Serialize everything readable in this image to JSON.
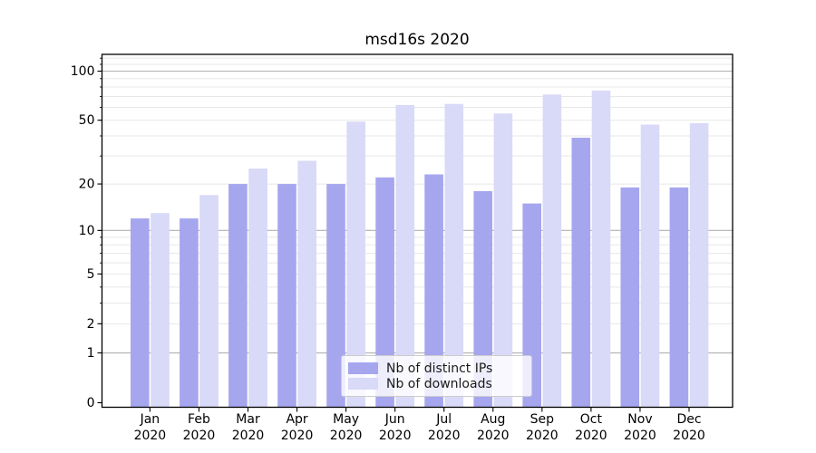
{
  "chart_data": {
    "type": "bar",
    "title": "msd16s 2020",
    "categories": [
      "Jan",
      "Feb",
      "Mar",
      "Apr",
      "May",
      "Jun",
      "Jul",
      "Aug",
      "Sep",
      "Oct",
      "Nov",
      "Dec"
    ],
    "category_year": "2020",
    "series": [
      {
        "name": "Nb of distinct IPs",
        "color": "#a6a6ef",
        "values": [
          12,
          12,
          20,
          20,
          20,
          22,
          23,
          18,
          15,
          39,
          19,
          19
        ]
      },
      {
        "name": "Nb of downloads",
        "color": "#d9d9f8",
        "values": [
          13,
          17,
          25,
          28,
          49,
          62,
          63,
          55,
          72,
          76,
          47,
          48
        ]
      }
    ],
    "yscale": "log1p",
    "ylim": [
      0,
      126
    ],
    "ytick_values": [
      100,
      50,
      20,
      10,
      5,
      2,
      1,
      0
    ],
    "ytick_labels": [
      "100",
      "50",
      "20",
      "10",
      "5",
      "2",
      "1",
      "0"
    ],
    "major_grid_values": [
      1,
      10,
      100
    ],
    "minor_grid_values": [
      2,
      3,
      4,
      5,
      6,
      7,
      8,
      9,
      20,
      30,
      40,
      50,
      60,
      70,
      80,
      90,
      110,
      120
    ],
    "grid": true,
    "legend_position": "lower center",
    "colors": {
      "major_grid": "#b0b0b0",
      "minor_grid": "#e7e7e7",
      "axis": "#000000",
      "tick_text": "#000000"
    }
  }
}
